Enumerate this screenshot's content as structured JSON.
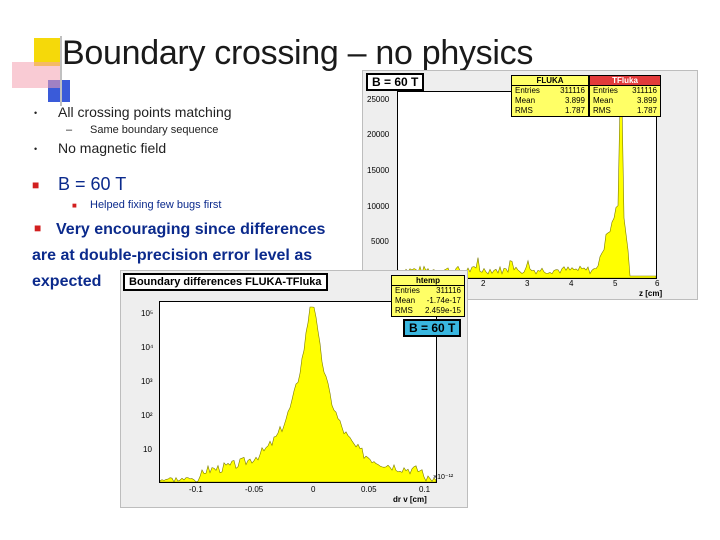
{
  "slide": {
    "title": "Boundary crossing – no physics",
    "bullets": [
      {
        "text": "All crossing points matching",
        "sub": "Same boundary sequence"
      },
      {
        "text": "No magnetic field"
      }
    ],
    "b60": {
      "text": "B = 60 T",
      "sub": "Helped fixing few bugs first"
    },
    "encouraging": "Very encouraging since differences are at double-precision error level as expected"
  },
  "plot_top": {
    "tag": "B = 60 T",
    "stats": [
      {
        "name": "FLUKA",
        "entries": "311116",
        "mean": "3.899",
        "rms": "1.787"
      },
      {
        "name": "TFluka",
        "entries": "311116",
        "mean": "3.899",
        "rms": "1.787"
      }
    ],
    "stat_labels": {
      "entries": "Entries",
      "mean": "Mean",
      "rms": "RMS"
    },
    "y_ticks": [
      "25000",
      "20000",
      "15000",
      "10000",
      "5000"
    ],
    "x_ticks": [
      "2",
      "3",
      "4",
      "5",
      "6"
    ],
    "xlabel": "z [cm]"
  },
  "plot_bottom": {
    "title": "Boundary differences FLUKA-TFluka",
    "tag": "B = 60 T",
    "stat_name": "htemp",
    "stats": {
      "entries": "311116",
      "mean": "-1.74e-17",
      "rms": "2.459e-15"
    },
    "stat_labels": {
      "entries": "Entries",
      "mean": "Mean",
      "rms": "RMS"
    },
    "y_ticks": [
      "10⁵",
      "10⁴",
      "10³",
      "10²",
      "10"
    ],
    "x_ticks": [
      "-0.1",
      "-0.05",
      "0",
      "0.05",
      "0.1"
    ],
    "x_exp": "×10⁻¹²",
    "xlabel": "dr v [cm]"
  },
  "colors": {
    "accent_blue": "#0b2a8c",
    "hist_yellow": "#ffff00",
    "sq_yellow": "#f5d90a",
    "sq_blue": "#3a5bd9",
    "sq_pink": "#f4a0b0"
  }
}
